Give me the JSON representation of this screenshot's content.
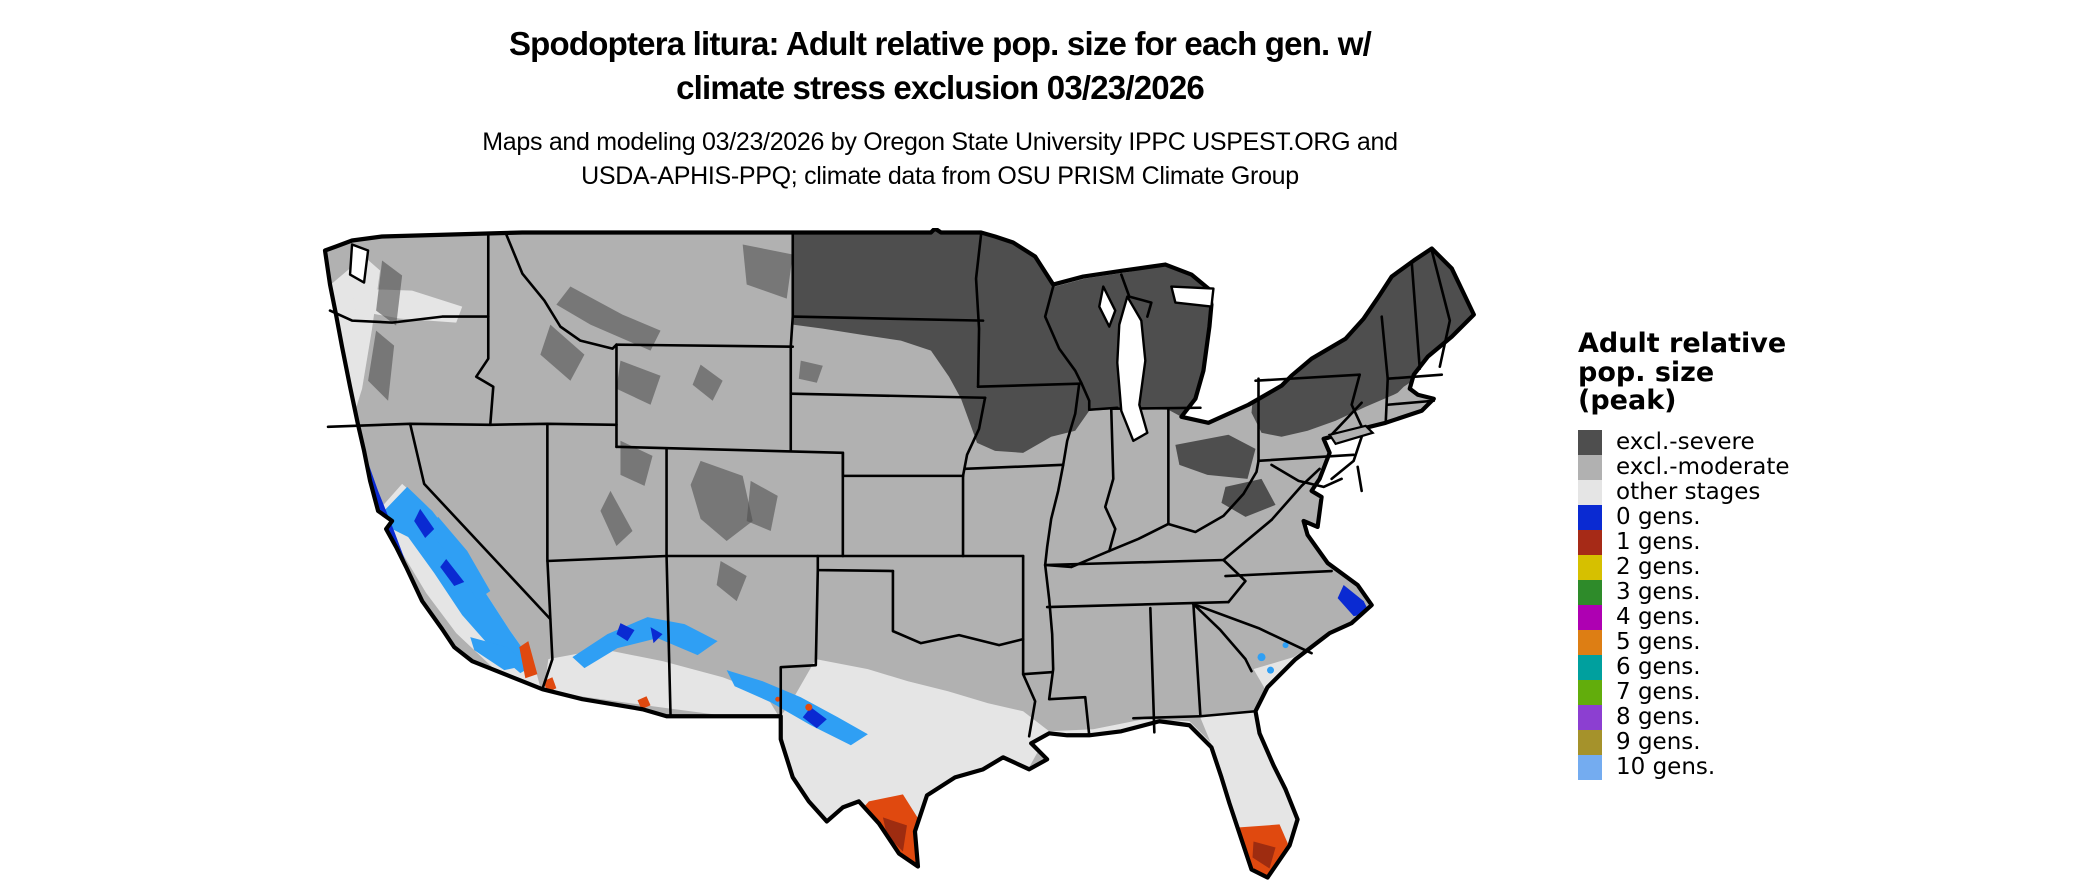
{
  "title": {
    "line1": "Spodoptera litura: Adult relative pop. size for each gen. w/",
    "line2": "climate stress exclusion 03/23/2026"
  },
  "subtitle": {
    "line1": "Maps and modeling 03/23/2026 by Oregon State University IPPC USPEST.ORG and",
    "line2": "USDA-APHIS-PPQ; climate data from OSU PRISM Climate Group"
  },
  "legend": {
    "title_lines": [
      "Adult relative",
      "pop. size",
      "(peak)"
    ],
    "entries": [
      {
        "key": "severe",
        "label": "excl.-severe",
        "color": "#4e4e4e"
      },
      {
        "key": "moderate",
        "label": "excl.-moderate",
        "color": "#b1b1b1"
      },
      {
        "key": "other",
        "label": "other stages",
        "color": "#e5e5e5"
      },
      {
        "key": "g0",
        "label": "0 gens.",
        "color": "#0a2ad2"
      },
      {
        "key": "g1",
        "label": "1 gens.",
        "color": "#a62a17"
      },
      {
        "key": "g2",
        "label": "2 gens.",
        "color": "#d6c000"
      },
      {
        "key": "g3",
        "label": "3 gens.",
        "color": "#2e8b2a"
      },
      {
        "key": "g4",
        "label": "4 gens.",
        "color": "#ae00b2"
      },
      {
        "key": "g5",
        "label": "5 gens.",
        "color": "#dd7e14"
      },
      {
        "key": "g6",
        "label": "6 gens.",
        "color": "#00a09e"
      },
      {
        "key": "g7",
        "label": "7 gens.",
        "color": "#62ad0c"
      },
      {
        "key": "g8",
        "label": "8 gens.",
        "color": "#8c3fd1"
      },
      {
        "key": "g9",
        "label": "9 gens.",
        "color": "#a5922b"
      },
      {
        "key": "g10",
        "label": "10 gens.",
        "color": "#74acf0"
      }
    ]
  },
  "map": {
    "region": "Continental United States choropleth raster",
    "background_color": "#ffffff",
    "state_border_color": "#000000"
  }
}
